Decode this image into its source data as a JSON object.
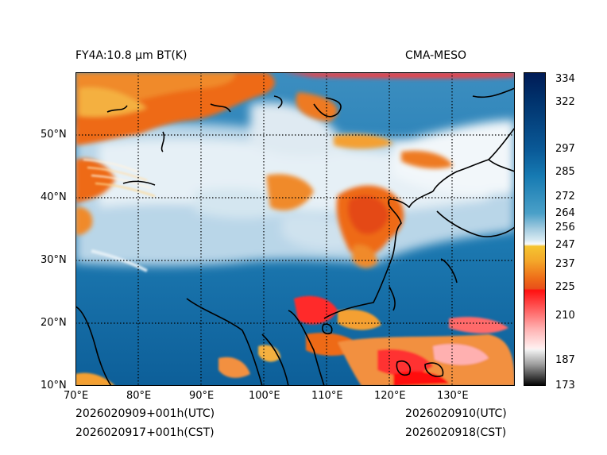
{
  "header": {
    "product": "FY4A:10.8 μm BT(K)",
    "model": "CMA-MESO"
  },
  "footer": {
    "init_utc": "2026020909+001h(UTC)",
    "init_cst": "2026020917+001h(CST)",
    "valid_utc": "2026020910(UTC)",
    "valid_cst": "2026020918(CST)"
  },
  "map": {
    "lon_ticks": [
      "70°E",
      "80°E",
      "90°E",
      "100°E",
      "110°E",
      "120°E",
      "130°E"
    ],
    "lat_ticks": [
      "50°N",
      "40°N",
      "30°N",
      "20°N",
      "10°N"
    ],
    "lon_range": [
      70,
      140
    ],
    "lat_range": [
      10,
      60
    ]
  },
  "colorbar": {
    "ticks": [
      "334",
      "322",
      "297",
      "285",
      "272",
      "264",
      "256",
      "247",
      "237",
      "225",
      "210",
      "187",
      "173"
    ],
    "colors": {
      "top": "#001a55",
      "blue": "#0a6aa8",
      "light": "#eef4f8",
      "yellow": "#f5c430",
      "orange": "#ee6a18",
      "red": "#ff1010",
      "pink": "#ffb4b4",
      "gray": "#888888",
      "black": "#000000"
    }
  }
}
